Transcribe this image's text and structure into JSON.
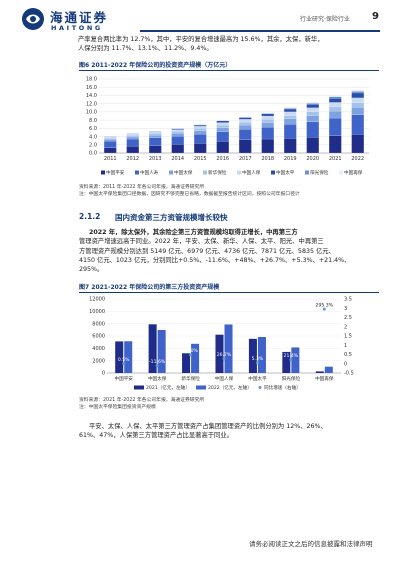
{
  "header": {
    "logo_cn": "海通证券",
    "logo_en": "HAITONG",
    "report_type": "行业研究·保险行业",
    "page_number": "9"
  },
  "intro": {
    "lines": [
      "产率复合两比率为 12.7%，其中，平安的复合增速最高为 15.6%，其余，太保，新华，",
      "人保分别为 11.7%、13.1%、11.2%、9.4%。"
    ]
  },
  "figure6": {
    "caption": "图6   2011-2022 年保险公司的投资资产规模（万亿元）",
    "source_lines": [
      "资料来源：2011 年-2022 年各公司年报，海通证券研究所",
      "注：中国太平保险集团口径数据，因研究不够完整已省略，数据截至报告统计区间，按照公司年报口径计"
    ]
  },
  "section": {
    "number": "2.1.2",
    "title": "国内资金第三方资管规模增长较快"
  },
  "para1": {
    "lines": [
      "2022 年，除太保外，其余险企第三方资管规模均取得正增长，中再第三方",
      "管理资产增速远高于同业。2022 年，平安、太保、新华、人保、太平、阳光、中再第三",
      "方管理资产规模分别达到 5149 亿元、6979 亿元、4736 亿元、7871 亿元、5835 亿元、",
      "4150 亿元、1023 亿元，分别同比+0.5%、-11.6%、+48%、+26.7%、+5.3%、+21.4%、",
      "295%。"
    ]
  },
  "figure7": {
    "caption": "图7   2021-2022 年保险公司的第三方投资资产规模",
    "source_lines": [
      "资料来源：2021 年-2022 年各公司年报，海通证券研究所",
      "注：中国太平保险集团投资资产规模"
    ]
  },
  "para2": {
    "lines": [
      "平安、太保、人保、太平第三方管理资产占集团管理资产的比例分别为 12%、26%、",
      "61%、47%，人保第三方管理资产占比显著高于同业。"
    ]
  },
  "footer": {
    "disclaimer": "请务必阅读正文之后的信息披露和法律声明"
  },
  "colors": {
    "brand": "#143a7a",
    "dark_blue": "#1f2c8a",
    "mid_blue": "#3f63c9",
    "light_blue": "#a5c2ea",
    "dot_blue": "#5b9bd5"
  },
  "chart_data": [
    {
      "type": "bar",
      "stacked": true,
      "categories": [
        "2011",
        "2012",
        "2013",
        "2014",
        "2015",
        "2016",
        "2017",
        "2018",
        "2019",
        "2020",
        "2021",
        "2022"
      ],
      "ylim": [
        0,
        18
      ],
      "yticks": [
        "0.0",
        "2.0",
        "4.0",
        "6.0",
        "8.0",
        "10.0",
        "12.0",
        "14.0",
        "16.0",
        "18.0"
      ],
      "series": [
        {
          "name": "中国平安",
          "values": [
            1.3,
            1.6,
            1.8,
            2.1,
            2.4,
            2.8,
            3.2,
            3.4,
            3.6,
            3.8,
            4.2,
            4.5
          ]
        },
        {
          "name": "中国人寿",
          "values": [
            1.6,
            1.8,
            1.9,
            2.0,
            2.2,
            2.4,
            2.6,
            2.9,
            3.4,
            3.8,
            4.3,
            4.8
          ]
        },
        {
          "name": "中国太保",
          "values": [
            0.4,
            0.5,
            0.6,
            0.7,
            0.8,
            0.9,
            1.0,
            1.1,
            1.3,
            1.5,
            1.7,
            1.8
          ]
        },
        {
          "name": "新华保险",
          "values": [
            0.3,
            0.4,
            0.5,
            0.5,
            0.6,
            0.7,
            0.7,
            0.8,
            0.8,
            0.9,
            1.0,
            1.1
          ]
        },
        {
          "name": "中国人保",
          "values": [
            0.3,
            0.3,
            0.4,
            0.4,
            0.5,
            0.6,
            0.7,
            0.8,
            0.9,
            1.0,
            1.1,
            1.2
          ]
        },
        {
          "name": "中国太平",
          "values": [
            0.1,
            0.1,
            0.1,
            0.2,
            0.3,
            0.4,
            0.4,
            0.5,
            0.7,
            0.8,
            1.0,
            1.2
          ]
        },
        {
          "name": "阳光保险",
          "values": [
            0.05,
            0.05,
            0.05,
            0.1,
            0.1,
            0.1,
            0.15,
            0.15,
            0.2,
            0.3,
            0.4,
            0.4
          ]
        },
        {
          "name": "中国再保",
          "values": [
            0.05,
            0.05,
            0.05,
            0.1,
            0.1,
            0.1,
            0.15,
            0.15,
            0.2,
            0.3,
            0.4,
            0.4
          ]
        }
      ],
      "series_colors": [
        "#1f2c8a",
        "#3f63c9",
        "#7ea1e0",
        "#a5c2ea",
        "#c9daf4",
        "#2a4fa8",
        "#6a8fd6",
        "#e6eefb"
      ]
    },
    {
      "type": "bar",
      "categories": [
        "中国平安",
        "中国太保",
        "新华保险",
        "中国人保",
        "中国太平",
        "阳光保险",
        "中国再保"
      ],
      "ylim": [
        0,
        12000
      ],
      "yticks": [
        "0",
        "2000",
        "4000",
        "6000",
        "8000",
        "10000",
        "12000"
      ],
      "y2lim": [
        -0.5,
        3.5
      ],
      "y2ticks": [
        "-0.5",
        "0",
        "0.5",
        "1",
        "1.5",
        "2",
        "2.5",
        "3",
        "3.5"
      ],
      "series": [
        {
          "name": "2021（亿元，左轴）",
          "values": [
            5124,
            7895,
            3200,
            6212,
            5541,
            3418,
            259
          ]
        },
        {
          "name": "2022（亿元，左轴）",
          "values": [
            5149,
            6979,
            4736,
            7871,
            5835,
            4150,
            1023
          ]
        },
        {
          "name": "同比增速（右轴）",
          "values": [
            0.005,
            -0.116,
            0.48,
            0.267,
            0.053,
            0.214,
            2.95
          ]
        }
      ],
      "growth_labels": [
        "0.5%",
        "-11.6%",
        "48.0%",
        "26.7%",
        "5.3%",
        "21.4%",
        "295.3%"
      ]
    }
  ]
}
